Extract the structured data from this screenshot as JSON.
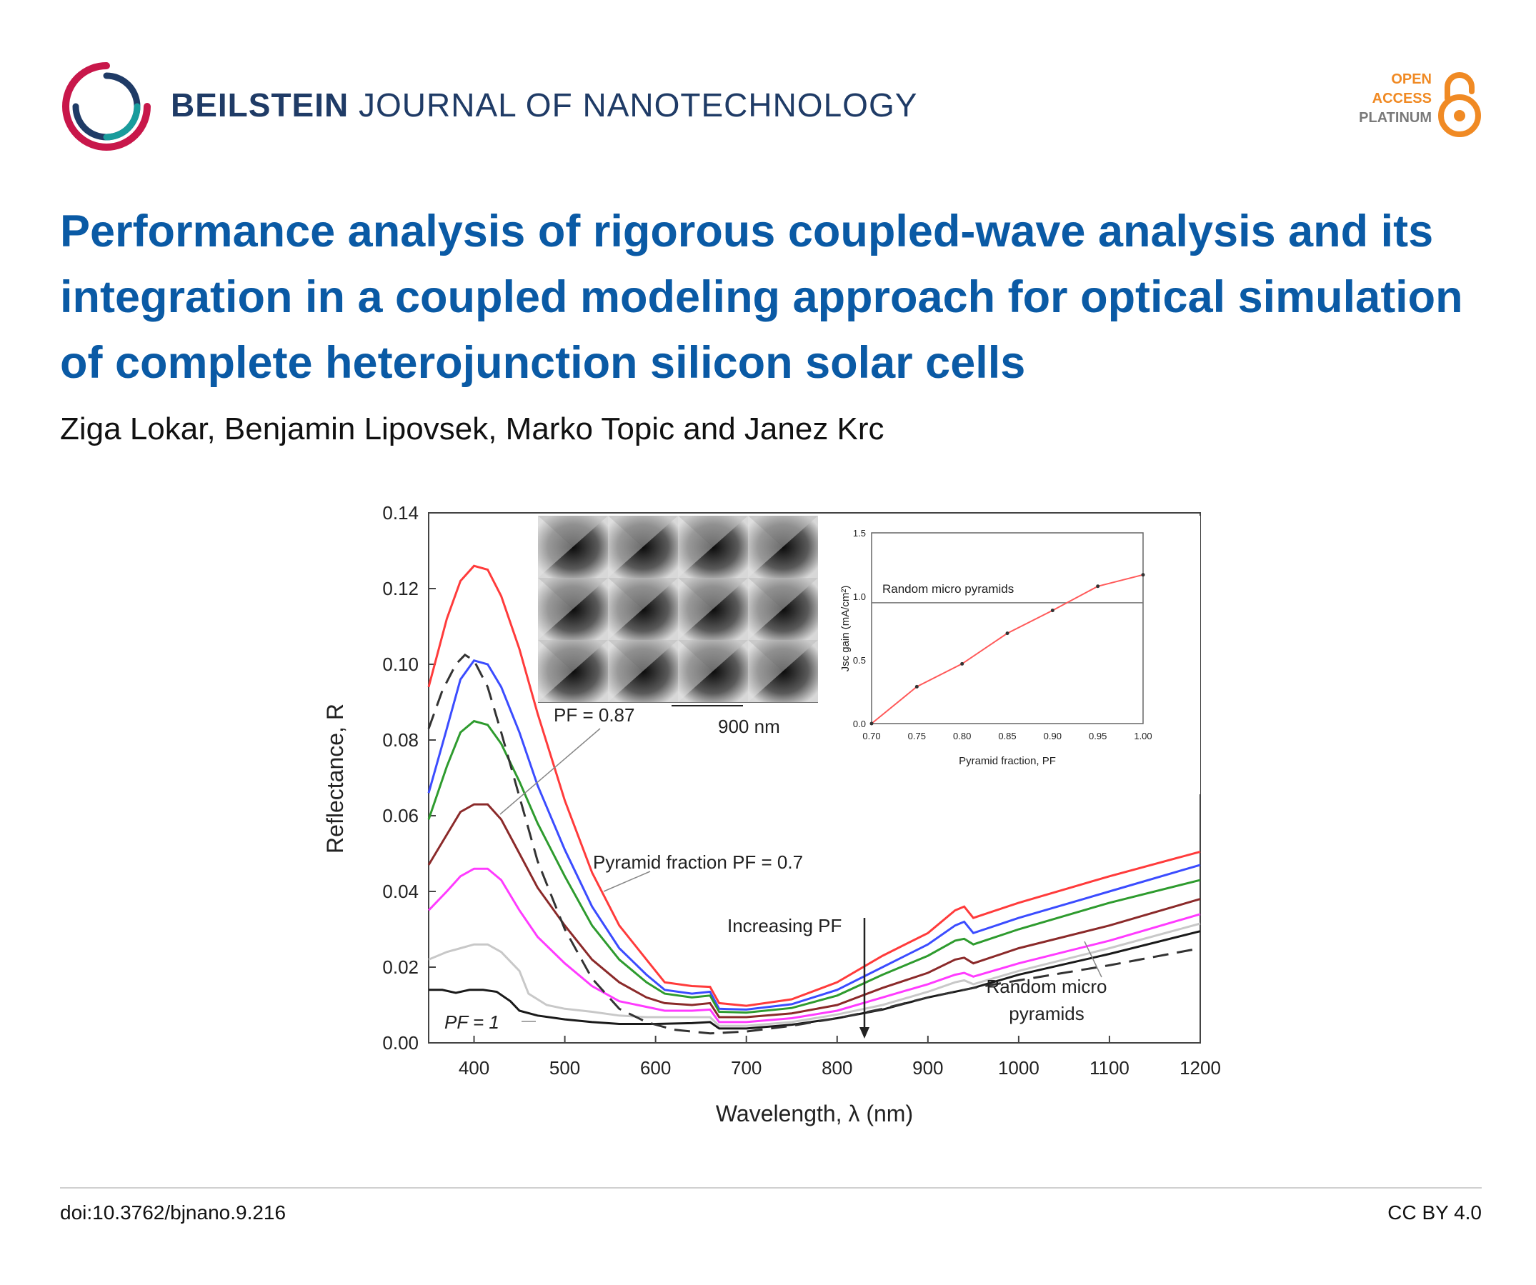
{
  "header": {
    "journal_bold": "BEILSTEIN",
    "journal_rest": "JOURNAL OF NANOTECHNOLOGY",
    "oa_line1": "OPEN",
    "oa_line2": "ACCESS",
    "oa_line3": "PLATINUM",
    "logo_icon": "beilstein-ring-logo",
    "oa_icon": "open-access-lock-icon"
  },
  "article": {
    "title": "Performance analysis of rigorous coupled-wave analysis and its integration in a coupled modeling approach for optical simulation of complete heterojunction silicon solar cells",
    "authors": "Ziga Lokar, Benjamin Lipovsek, Marko Topic and Janez Krc"
  },
  "footer": {
    "doi": "doi:10.3762/bjnano.9.216",
    "license": "CC BY 4.0"
  },
  "chart_data": [
    {
      "type": "line",
      "xlabel": "Wavelength, λ (nm)",
      "ylabel": "Reflectance, R",
      "xlim": [
        350,
        1200
      ],
      "ylim": [
        0,
        0.14
      ],
      "x_ticks": [
        "400",
        "500",
        "600",
        "700",
        "800",
        "900",
        "1000",
        "1100",
        "1200"
      ],
      "y_ticks": [
        "0.00",
        "0.02",
        "0.04",
        "0.06",
        "0.08",
        "0.10",
        "0.12",
        "0.14"
      ],
      "grid": false,
      "annotations": [
        "PF = 0.87",
        "900 nm",
        "Pyramid fraction PF = 0.7",
        "Increasing PF",
        "Random micro pyramids",
        "PF = 1"
      ],
      "series": [
        {
          "name": "PF = 0.7",
          "color": "#ff3b3b",
          "style": "solid",
          "points": [
            [
              350,
              0.094
            ],
            [
              370,
              0.112
            ],
            [
              385,
              0.122
            ],
            [
              400,
              0.126
            ],
            [
              415,
              0.125
            ],
            [
              430,
              0.118
            ],
            [
              450,
              0.104
            ],
            [
              470,
              0.087
            ],
            [
              500,
              0.064
            ],
            [
              530,
              0.045
            ],
            [
              560,
              0.031
            ],
            [
              590,
              0.022
            ],
            [
              610,
              0.016
            ],
            [
              640,
              0.015
            ],
            [
              660,
              0.0148
            ],
            [
              670,
              0.0105
            ],
            [
              700,
              0.0098
            ],
            [
              750,
              0.0115
            ],
            [
              800,
              0.016
            ],
            [
              850,
              0.023
            ],
            [
              900,
              0.029
            ],
            [
              930,
              0.035
            ],
            [
              940,
              0.036
            ],
            [
              950,
              0.033
            ],
            [
              1000,
              0.037
            ],
            [
              1100,
              0.044
            ],
            [
              1200,
              0.0505
            ]
          ]
        },
        {
          "name": "",
          "color": "#3b4cff",
          "style": "solid",
          "points": [
            [
              350,
              0.066
            ],
            [
              370,
              0.083
            ],
            [
              385,
              0.096
            ],
            [
              400,
              0.101
            ],
            [
              415,
              0.1
            ],
            [
              430,
              0.094
            ],
            [
              450,
              0.082
            ],
            [
              470,
              0.068
            ],
            [
              500,
              0.051
            ],
            [
              530,
              0.036
            ],
            [
              560,
              0.025
            ],
            [
              590,
              0.018
            ],
            [
              610,
              0.014
            ],
            [
              640,
              0.013
            ],
            [
              660,
              0.0135
            ],
            [
              670,
              0.009
            ],
            [
              700,
              0.0088
            ],
            [
              750,
              0.0102
            ],
            [
              800,
              0.014
            ],
            [
              850,
              0.02
            ],
            [
              900,
              0.026
            ],
            [
              930,
              0.031
            ],
            [
              940,
              0.032
            ],
            [
              950,
              0.029
            ],
            [
              1000,
              0.033
            ],
            [
              1100,
              0.04
            ],
            [
              1200,
              0.047
            ]
          ]
        },
        {
          "name": "",
          "color": "#2e9b2e",
          "style": "solid",
          "points": [
            [
              350,
              0.059
            ],
            [
              370,
              0.073
            ],
            [
              385,
              0.082
            ],
            [
              400,
              0.085
            ],
            [
              415,
              0.084
            ],
            [
              430,
              0.079
            ],
            [
              450,
              0.069
            ],
            [
              470,
              0.058
            ],
            [
              500,
              0.044
            ],
            [
              530,
              0.031
            ],
            [
              560,
              0.022
            ],
            [
              590,
              0.016
            ],
            [
              610,
              0.013
            ],
            [
              640,
              0.012
            ],
            [
              660,
              0.0125
            ],
            [
              670,
              0.0082
            ],
            [
              700,
              0.008
            ],
            [
              750,
              0.0092
            ],
            [
              800,
              0.0125
            ],
            [
              850,
              0.018
            ],
            [
              900,
              0.023
            ],
            [
              930,
              0.027
            ],
            [
              940,
              0.0275
            ],
            [
              950,
              0.026
            ],
            [
              1000,
              0.03
            ],
            [
              1100,
              0.037
            ],
            [
              1200,
              0.043
            ]
          ]
        },
        {
          "name": "",
          "color": "#8b2a2a",
          "style": "solid",
          "points": [
            [
              350,
              0.047
            ],
            [
              370,
              0.055
            ],
            [
              385,
              0.061
            ],
            [
              400,
              0.063
            ],
            [
              415,
              0.063
            ],
            [
              430,
              0.059
            ],
            [
              450,
              0.05
            ],
            [
              470,
              0.041
            ],
            [
              500,
              0.031
            ],
            [
              530,
              0.022
            ],
            [
              560,
              0.016
            ],
            [
              590,
              0.012
            ],
            [
              610,
              0.0105
            ],
            [
              640,
              0.01
            ],
            [
              660,
              0.0105
            ],
            [
              670,
              0.0068
            ],
            [
              700,
              0.0068
            ],
            [
              750,
              0.0078
            ],
            [
              800,
              0.01
            ],
            [
              850,
              0.0145
            ],
            [
              900,
              0.0185
            ],
            [
              930,
              0.022
            ],
            [
              940,
              0.0225
            ],
            [
              950,
              0.021
            ],
            [
              1000,
              0.025
            ],
            [
              1100,
              0.031
            ],
            [
              1200,
              0.038
            ]
          ]
        },
        {
          "name": "",
          "color": "#ff3bff",
          "style": "solid",
          "points": [
            [
              350,
              0.035
            ],
            [
              370,
              0.04
            ],
            [
              385,
              0.044
            ],
            [
              400,
              0.046
            ],
            [
              415,
              0.046
            ],
            [
              430,
              0.043
            ],
            [
              450,
              0.035
            ],
            [
              470,
              0.028
            ],
            [
              500,
              0.021
            ],
            [
              530,
              0.015
            ],
            [
              560,
              0.011
            ],
            [
              590,
              0.0095
            ],
            [
              610,
              0.0085
            ],
            [
              640,
              0.0085
            ],
            [
              660,
              0.0088
            ],
            [
              670,
              0.0055
            ],
            [
              700,
              0.0055
            ],
            [
              750,
              0.0065
            ],
            [
              800,
              0.0085
            ],
            [
              850,
              0.012
            ],
            [
              900,
              0.0155
            ],
            [
              930,
              0.018
            ],
            [
              940,
              0.0185
            ],
            [
              950,
              0.0175
            ],
            [
              1000,
              0.021
            ],
            [
              1100,
              0.027
            ],
            [
              1200,
              0.034
            ]
          ]
        },
        {
          "name": "",
          "color": "#c8c8c8",
          "style": "solid",
          "points": [
            [
              350,
              0.022
            ],
            [
              370,
              0.024
            ],
            [
              385,
              0.025
            ],
            [
              400,
              0.026
            ],
            [
              415,
              0.026
            ],
            [
              430,
              0.024
            ],
            [
              450,
              0.019
            ],
            [
              460,
              0.013
            ],
            [
              480,
              0.01
            ],
            [
              500,
              0.009
            ],
            [
              530,
              0.0082
            ],
            [
              560,
              0.0072
            ],
            [
              590,
              0.0068
            ],
            [
              620,
              0.0068
            ],
            [
              660,
              0.0068
            ],
            [
              670,
              0.0045
            ],
            [
              700,
              0.0045
            ],
            [
              750,
              0.0055
            ],
            [
              800,
              0.0075
            ],
            [
              850,
              0.01
            ],
            [
              900,
              0.0135
            ],
            [
              930,
              0.016
            ],
            [
              940,
              0.0165
            ],
            [
              950,
              0.0155
            ],
            [
              1000,
              0.019
            ],
            [
              1100,
              0.025
            ],
            [
              1200,
              0.0315
            ]
          ]
        },
        {
          "name": "PF = 1",
          "color": "#1a1a1a",
          "style": "solid",
          "points": [
            [
              350,
              0.014
            ],
            [
              365,
              0.014
            ],
            [
              380,
              0.0132
            ],
            [
              395,
              0.014
            ],
            [
              410,
              0.014
            ],
            [
              425,
              0.0135
            ],
            [
              440,
              0.011
            ],
            [
              450,
              0.0085
            ],
            [
              470,
              0.0072
            ],
            [
              500,
              0.0062
            ],
            [
              530,
              0.0055
            ],
            [
              560,
              0.005
            ],
            [
              600,
              0.005
            ],
            [
              640,
              0.0052
            ],
            [
              660,
              0.0055
            ],
            [
              670,
              0.0038
            ],
            [
              700,
              0.0038
            ],
            [
              750,
              0.0048
            ],
            [
              800,
              0.0065
            ],
            [
              850,
              0.0088
            ],
            [
              900,
              0.012
            ],
            [
              950,
              0.0145
            ],
            [
              1000,
              0.018
            ],
            [
              1100,
              0.0235
            ],
            [
              1200,
              0.0295
            ]
          ]
        },
        {
          "name": "Random micro pyramids",
          "color": "#333333",
          "style": "dashed",
          "points": [
            [
              350,
              0.083
            ],
            [
              365,
              0.093
            ],
            [
              380,
              0.1
            ],
            [
              390,
              0.1025
            ],
            [
              400,
              0.101
            ],
            [
              415,
              0.094
            ],
            [
              430,
              0.082
            ],
            [
              450,
              0.065
            ],
            [
              470,
              0.048
            ],
            [
              500,
              0.03
            ],
            [
              530,
              0.017
            ],
            [
              560,
              0.009
            ],
            [
              590,
              0.0055
            ],
            [
              620,
              0.0035
            ],
            [
              660,
              0.0025
            ],
            [
              700,
              0.003
            ],
            [
              750,
              0.0045
            ],
            [
              800,
              0.0065
            ],
            [
              850,
              0.009
            ],
            [
              900,
              0.012
            ],
            [
              950,
              0.0145
            ],
            [
              1000,
              0.0165
            ],
            [
              1100,
              0.0205
            ],
            [
              1200,
              0.025
            ]
          ]
        }
      ]
    },
    {
      "type": "line",
      "xlabel": "Pyramid fraction, PF",
      "ylabel": "Jsc gain (mA/cm²)",
      "xlim": [
        0.7,
        1.0
      ],
      "ylim": [
        0,
        1.5
      ],
      "x_ticks": [
        "0.70",
        "0.75",
        "0.80",
        "0.85",
        "0.90",
        "0.95",
        "1.00"
      ],
      "y_ticks": [
        "0.0",
        "0.5",
        "1.0",
        "1.5"
      ],
      "reference_label": "Random micro pyramids",
      "reference_value": 0.95,
      "series": [
        {
          "name": "",
          "color": "#ff5a5a",
          "x": [
            0.7,
            0.75,
            0.8,
            0.85,
            0.9,
            0.95,
            1.0
          ],
          "values": [
            0.0,
            0.29,
            0.47,
            0.71,
            0.89,
            1.08,
            1.17
          ]
        }
      ]
    }
  ]
}
